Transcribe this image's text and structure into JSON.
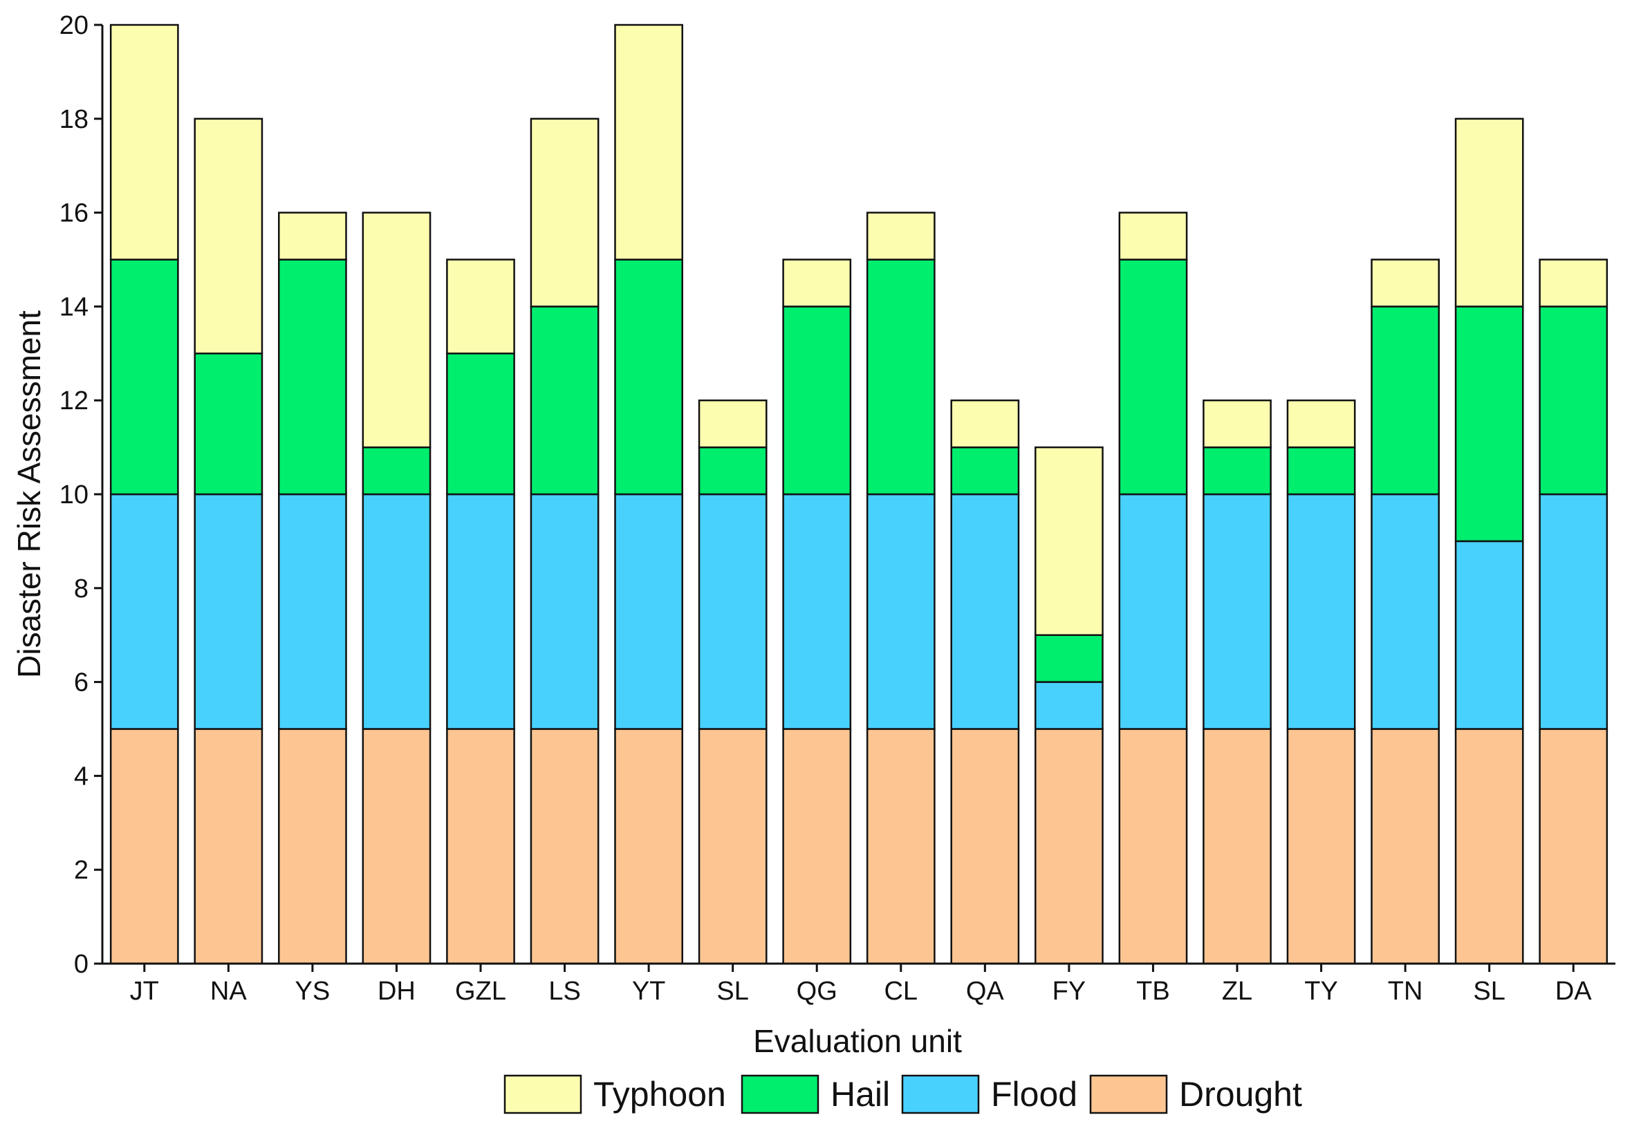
{
  "chart_data": {
    "type": "bar",
    "stacked": true,
    "title": "",
    "xlabel": "Evaluation unit",
    "ylabel": "Disaster Risk Assessment",
    "ylim": [
      0,
      20
    ],
    "yticks": [
      0,
      2,
      4,
      6,
      8,
      10,
      12,
      14,
      16,
      18,
      20
    ],
    "grid": false,
    "legend_position": "bottom",
    "categories": [
      "JT",
      "NA",
      "YS",
      "DH",
      "GZL",
      "LS",
      "YT",
      "SL",
      "QG",
      "CL",
      "QA",
      "FY",
      "TB",
      "ZL",
      "TY",
      "TN",
      "SL",
      "DA"
    ],
    "series": [
      {
        "name": "Drought",
        "color": "#FCC592",
        "values": [
          5,
          5,
          5,
          5,
          5,
          5,
          5,
          5,
          5,
          5,
          5,
          5,
          5,
          5,
          5,
          5,
          5,
          5
        ]
      },
      {
        "name": "Flood",
        "color": "#48D1FD",
        "values": [
          5,
          5,
          5,
          5,
          5,
          5,
          5,
          5,
          5,
          5,
          5,
          1,
          5,
          5,
          5,
          5,
          4,
          5
        ]
      },
      {
        "name": "Hail",
        "color": "#00EE6E",
        "values": [
          5,
          3,
          5,
          1,
          3,
          4,
          5,
          1,
          4,
          5,
          1,
          1,
          5,
          1,
          1,
          4,
          5,
          4
        ]
      },
      {
        "name": "Typhoon",
        "color": "#FDFDB0",
        "values": [
          5,
          5,
          1,
          5,
          2,
          4,
          5,
          1,
          1,
          1,
          1,
          4,
          1,
          1,
          1,
          1,
          4,
          1
        ]
      }
    ],
    "legend_order": [
      "Typhoon",
      "Hail",
      "Flood",
      "Drought"
    ]
  }
}
